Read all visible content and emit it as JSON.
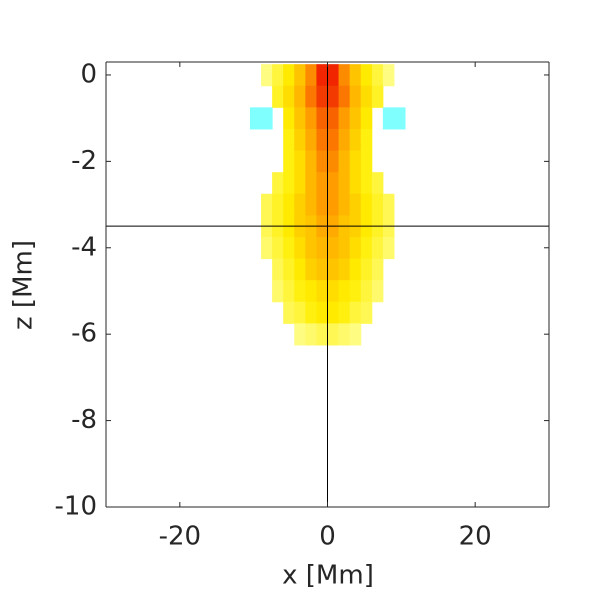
{
  "chart_data": {
    "type": "heatmap",
    "xlabel": "x [Mm]",
    "ylabel": "z [Mm]",
    "xlim": [
      -30,
      30
    ],
    "ylim": [
      -10,
      0.3
    ],
    "xticks": [
      -20,
      0,
      20
    ],
    "yticks": [
      0,
      -2,
      -4,
      -6,
      -8,
      -10
    ],
    "x": [
      -11.25,
      -9.75,
      -8.25,
      -6.75,
      -5.25,
      -3.75,
      -2.25,
      -0.75,
      0.75,
      2.25,
      3.75,
      5.25,
      6.75,
      8.25,
      9.75,
      11.25
    ],
    "y": [
      0,
      -0.5,
      -1,
      -1.5,
      -2,
      -2.5,
      -3,
      -3.5,
      -4,
      -4.5,
      -5,
      -5.5,
      -6
    ],
    "values": [
      [
        null,
        null,
        0.05,
        0.2,
        0.35,
        0.5,
        0.7,
        0.95,
        0.95,
        0.7,
        0.5,
        0.35,
        0.2,
        0.05,
        null,
        null
      ],
      [
        null,
        null,
        null,
        0.25,
        0.4,
        0.55,
        0.75,
        0.9,
        0.9,
        0.75,
        0.55,
        0.4,
        0.25,
        null,
        null,
        null
      ],
      [
        null,
        -0.5,
        -0.5,
        null,
        0.35,
        0.5,
        0.65,
        0.8,
        0.8,
        0.65,
        0.5,
        0.35,
        null,
        -0.5,
        -0.5,
        null
      ],
      [
        null,
        null,
        null,
        null,
        0.3,
        0.45,
        0.6,
        0.75,
        0.75,
        0.6,
        0.45,
        0.3,
        null,
        null,
        null,
        null
      ],
      [
        null,
        null,
        null,
        null,
        0.3,
        0.4,
        0.55,
        0.7,
        0.7,
        0.55,
        0.4,
        0.3,
        null,
        null,
        null,
        null
      ],
      [
        null,
        null,
        null,
        0.2,
        0.3,
        0.4,
        0.55,
        0.65,
        0.65,
        0.55,
        0.4,
        0.3,
        0.2,
        null,
        null,
        null
      ],
      [
        null,
        null,
        0.15,
        0.25,
        0.35,
        0.45,
        0.55,
        0.65,
        0.65,
        0.55,
        0.45,
        0.35,
        0.25,
        0.15,
        null,
        null
      ],
      [
        null,
        null,
        0.15,
        0.25,
        0.35,
        0.45,
        0.5,
        0.6,
        0.6,
        0.5,
        0.45,
        0.35,
        0.25,
        0.15,
        null,
        null
      ],
      [
        null,
        null,
        0.1,
        0.2,
        0.3,
        0.4,
        0.5,
        0.55,
        0.55,
        0.5,
        0.4,
        0.3,
        0.2,
        0.1,
        null,
        null
      ],
      [
        null,
        null,
        null,
        0.15,
        0.25,
        0.35,
        0.45,
        0.5,
        0.5,
        0.45,
        0.35,
        0.25,
        0.15,
        null,
        null,
        null
      ],
      [
        null,
        null,
        null,
        0.1,
        0.2,
        0.3,
        0.35,
        0.4,
        0.4,
        0.35,
        0.3,
        0.2,
        0.1,
        null,
        null,
        null
      ],
      [
        null,
        null,
        null,
        null,
        0.15,
        0.2,
        0.3,
        0.35,
        0.35,
        0.3,
        0.2,
        0.15,
        null,
        null,
        null,
        null
      ],
      [
        null,
        null,
        null,
        null,
        null,
        0.05,
        0.1,
        0.15,
        0.15,
        0.1,
        0.05,
        null,
        null,
        null,
        null,
        null
      ]
    ],
    "cell_size": [
      1.5,
      0.5
    ],
    "colorscale": [
      "#ffff99",
      "#ffee00",
      "#ff9900",
      "#ee1100"
    ],
    "negative_color": "#80ffff",
    "crosshair": {
      "x": 0,
      "y": -3.5
    },
    "box": true
  }
}
